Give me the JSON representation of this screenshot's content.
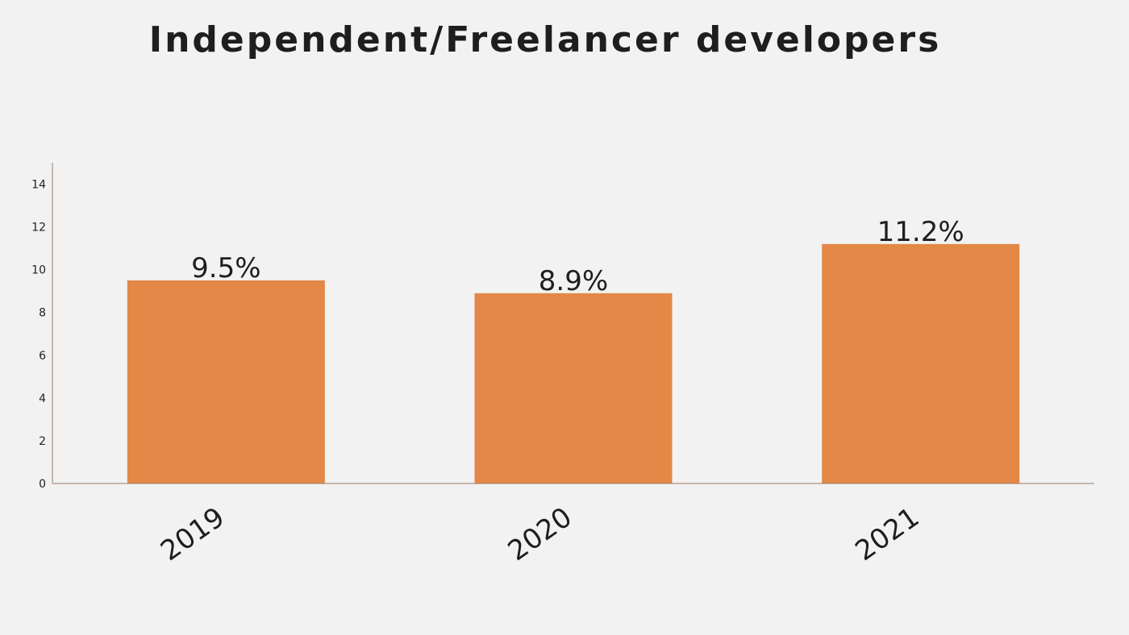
{
  "chart_data": {
    "type": "bar",
    "title": "Independent/Freelancer developers",
    "xlabel": "",
    "ylabel": "",
    "categories": [
      "2019",
      "2020",
      "2021"
    ],
    "values": [
      9.5,
      8.9,
      11.2
    ],
    "data_labels": [
      "9.5%",
      "8.9%",
      "11.2%"
    ],
    "y_ticks": [
      0,
      2,
      4,
      6,
      8,
      10,
      12,
      14
    ],
    "ylim": [
      0,
      15
    ],
    "grid": false,
    "legend": "none",
    "bar_color": "#e38846",
    "axis_color": "#9c7a66"
  }
}
